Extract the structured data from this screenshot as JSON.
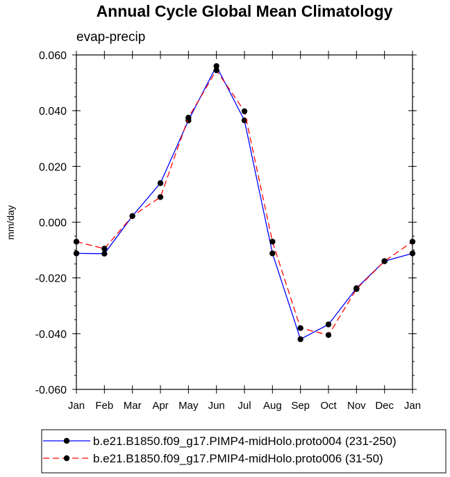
{
  "chart_data": {
    "type": "line",
    "title": "Annual Cycle Global Mean Climatology",
    "subtitle": "evap-precip",
    "xlabel": "",
    "ylabel": "mm/day",
    "ylim": [
      -0.06,
      0.06
    ],
    "yticks": [
      "0.060",
      "0.040",
      "0.020",
      "0.000",
      "-0.020",
      "-0.040",
      "-0.060"
    ],
    "ytick_values": [
      0.06,
      0.04,
      0.02,
      0.0,
      -0.02,
      -0.04,
      -0.06
    ],
    "categories": [
      "Jan",
      "Feb",
      "Mar",
      "Apr",
      "May",
      "Jun",
      "Jul",
      "Aug",
      "Sep",
      "Oct",
      "Nov",
      "Dec",
      "Jan"
    ],
    "grid": false,
    "legend_position": "bottom",
    "series": [
      {
        "name": "b.e21.B1850.f09_g17.PIMP4-midHolo.proto004 (231-250)",
        "color": "#0000ff",
        "dash": "solid",
        "marker": "filled-circle",
        "values": [
          -0.0112,
          -0.0113,
          0.0022,
          0.014,
          0.0365,
          0.056,
          0.0365,
          -0.0112,
          -0.042,
          -0.0367,
          -0.0237,
          -0.014,
          -0.0112
        ]
      },
      {
        "name": "b.e21.B1850.f09_g17.PMIP4-midHolo.proto006 (31-50)",
        "color": "#ff0000",
        "dash": "dashed",
        "marker": "filled-circle",
        "values": [
          -0.007,
          -0.0095,
          0.0022,
          0.009,
          0.0375,
          0.0545,
          0.0398,
          -0.007,
          -0.038,
          -0.0405,
          -0.024,
          -0.014,
          -0.007
        ]
      }
    ]
  }
}
